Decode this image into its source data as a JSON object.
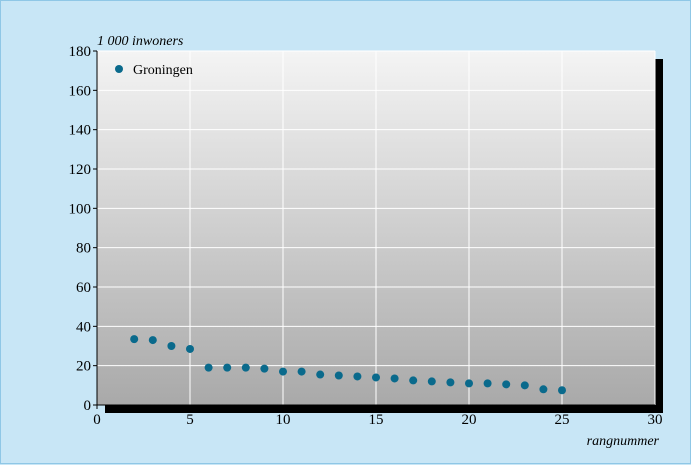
{
  "chart_data": {
    "type": "scatter",
    "ylabel": "1 000 inwoners",
    "xlabel": "rangnummer",
    "xlim": [
      0,
      30
    ],
    "ylim": [
      0,
      180
    ],
    "x_ticks": [
      0,
      5,
      10,
      15,
      20,
      25,
      30
    ],
    "y_ticks": [
      0,
      20,
      40,
      60,
      80,
      100,
      120,
      140,
      160,
      180
    ],
    "grid": true,
    "legend_position": "top-left",
    "series": [
      {
        "name": "Groningen",
        "color": "#0a6a8c",
        "points": [
          {
            "x": 2,
            "y": 33.5
          },
          {
            "x": 3,
            "y": 33
          },
          {
            "x": 4,
            "y": 30
          },
          {
            "x": 5,
            "y": 28.5
          },
          {
            "x": 6,
            "y": 19
          },
          {
            "x": 7,
            "y": 19
          },
          {
            "x": 8,
            "y": 19
          },
          {
            "x": 9,
            "y": 18.5
          },
          {
            "x": 10,
            "y": 17
          },
          {
            "x": 11,
            "y": 17
          },
          {
            "x": 12,
            "y": 15.5
          },
          {
            "x": 13,
            "y": 15
          },
          {
            "x": 14,
            "y": 14.5
          },
          {
            "x": 15,
            "y": 14
          },
          {
            "x": 16,
            "y": 13.5
          },
          {
            "x": 17,
            "y": 12.5
          },
          {
            "x": 18,
            "y": 12
          },
          {
            "x": 19,
            "y": 11.5
          },
          {
            "x": 20,
            "y": 11
          },
          {
            "x": 21,
            "y": 11
          },
          {
            "x": 22,
            "y": 10.5
          },
          {
            "x": 23,
            "y": 10
          },
          {
            "x": 24,
            "y": 8
          },
          {
            "x": 25,
            "y": 7.5
          }
        ]
      }
    ]
  }
}
